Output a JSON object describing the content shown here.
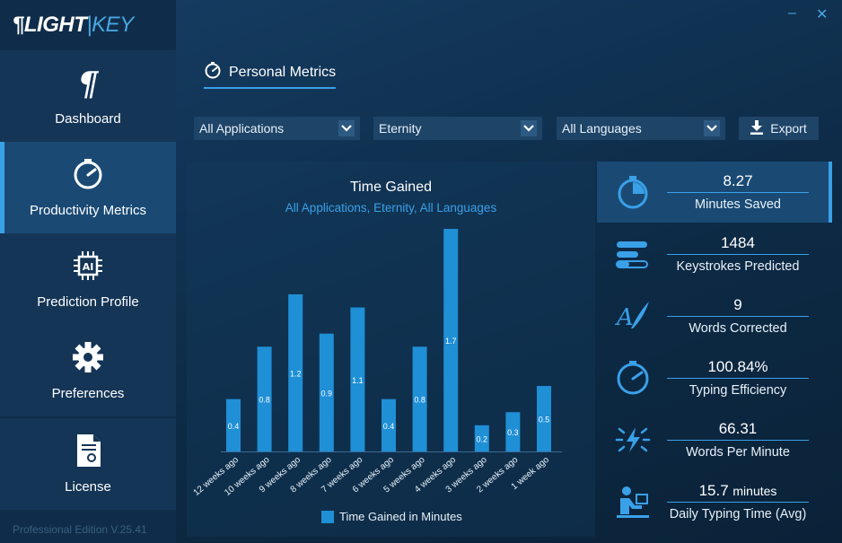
{
  "app": {
    "logo_left": "LIGHT",
    "logo_sep": "|",
    "logo_right": "KEY",
    "edition": "Professional Edition V.25.41",
    "accent": "#3aa0e8",
    "bar_color": "#1f8fd6"
  },
  "window": {
    "minimize": "–",
    "close": "✕"
  },
  "sidebar": {
    "items": [
      {
        "label": "Dashboard",
        "icon": "pilcrow-l-logo-icon"
      },
      {
        "label": "Productivity Metrics",
        "icon": "speedometer-icon",
        "active": true
      },
      {
        "label": "Prediction Profile",
        "icon": "ai-chip-icon"
      },
      {
        "label": "Preferences",
        "icon": "gear-icon"
      },
      {
        "label": "License",
        "icon": "certificate-document-icon"
      }
    ]
  },
  "header": {
    "title": "Personal Metrics",
    "icon": "speedometer-icon"
  },
  "filters": {
    "application": "All Applications",
    "period": "Eternity",
    "language": "All Languages",
    "export_label": "Export"
  },
  "chart_data": {
    "type": "bar",
    "title": "Time Gained",
    "subtitle": "All Applications, Eternity, All Languages",
    "categories": [
      "12 weeks ago",
      "10 weeks ago",
      "9 weeks ago",
      "8 weeks ago",
      "7 weeks ago",
      "6 weeks ago",
      "5 weeks ago",
      "4 weeks ago",
      "3 weeks ago",
      "2 weeks ago",
      "1 week ago"
    ],
    "series": [
      {
        "name": "Time Gained in Minutes",
        "values": [
          0.4,
          0.8,
          1.2,
          0.9,
          1.1,
          0.4,
          0.8,
          1.7,
          0.2,
          0.3,
          0.5
        ]
      }
    ],
    "legend": "bottom",
    "grid": false
  },
  "metrics": [
    {
      "value": "8.27",
      "label": "Minutes Saved",
      "icon": "stopwatch-icon"
    },
    {
      "value": "1484",
      "label": "Keystrokes Predicted",
      "icon": "keystroke-bars-icon"
    },
    {
      "value": "9",
      "label": "Words Corrected",
      "icon": "quill-correct-icon"
    },
    {
      "value": "100.84%",
      "label": "Typing Efficiency",
      "icon": "gauge-icon"
    },
    {
      "value": "66.31",
      "label": "Words Per Minute",
      "icon": "lightning-burst-icon"
    },
    {
      "value": "15.7",
      "unit": "minutes",
      "label": "Daily Typing Time (Avg)",
      "icon": "person-typing-icon"
    }
  ]
}
